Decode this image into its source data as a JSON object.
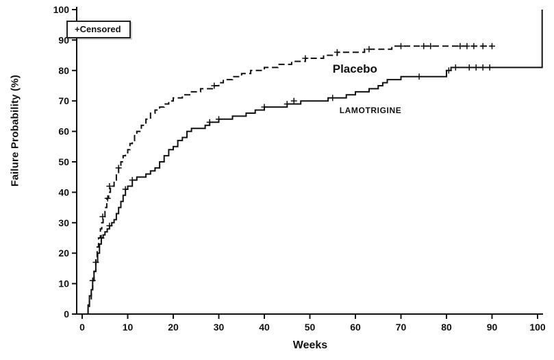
{
  "figure": {
    "background": "#ffffff",
    "axis_color": "#111111"
  },
  "chart_data": {
    "type": "line",
    "subtype": "kaplan-meier-step",
    "title": "",
    "xlabel": "Weeks",
    "ylabel": "Failure Probability (%)",
    "xlim": [
      0,
      101
    ],
    "ylim": [
      0,
      100
    ],
    "x_ticks": [
      0,
      10,
      20,
      30,
      40,
      50,
      60,
      70,
      80,
      90,
      100
    ],
    "y_ticks": [
      0,
      10,
      20,
      30,
      40,
      50,
      60,
      70,
      80,
      90,
      100
    ],
    "grid": false,
    "legend": {
      "label": "+Censored",
      "position": "top-left"
    },
    "series": [
      {
        "id": "placebo",
        "name": "Placebo",
        "line_style": "dashed",
        "label_week": 55,
        "label_prob": 80.5,
        "points": [
          [
            1,
            0
          ],
          [
            1.3,
            2
          ],
          [
            1.6,
            5
          ],
          [
            2,
            8
          ],
          [
            2.3,
            11
          ],
          [
            2.6,
            14
          ],
          [
            3,
            18
          ],
          [
            3.3,
            22
          ],
          [
            3.6,
            25
          ],
          [
            4,
            28
          ],
          [
            4.3,
            30
          ],
          [
            4.6,
            32
          ],
          [
            5,
            35
          ],
          [
            5.4,
            38
          ],
          [
            5.8,
            40
          ],
          [
            6.2,
            42
          ],
          [
            7,
            44
          ],
          [
            7.5,
            46
          ],
          [
            8,
            48
          ],
          [
            8.5,
            50
          ],
          [
            9,
            52
          ],
          [
            9.5,
            53
          ],
          [
            10,
            54
          ],
          [
            10.5,
            56
          ],
          [
            11,
            57
          ],
          [
            11.5,
            59
          ],
          [
            12,
            60
          ],
          [
            13,
            62
          ],
          [
            14,
            64
          ],
          [
            15,
            66
          ],
          [
            16,
            67
          ],
          [
            17,
            68
          ],
          [
            18,
            69
          ],
          [
            19,
            70
          ],
          [
            20,
            71
          ],
          [
            22,
            72
          ],
          [
            24,
            73
          ],
          [
            26,
            74
          ],
          [
            28,
            74
          ],
          [
            29,
            75
          ],
          [
            30,
            76
          ],
          [
            31,
            77
          ],
          [
            33,
            78
          ],
          [
            35,
            79
          ],
          [
            37,
            80
          ],
          [
            40,
            81
          ],
          [
            43,
            82
          ],
          [
            46,
            83
          ],
          [
            49,
            84
          ],
          [
            53,
            85
          ],
          [
            56,
            86
          ],
          [
            60,
            86
          ],
          [
            62,
            87
          ],
          [
            66,
            87
          ],
          [
            68,
            88
          ],
          [
            70,
            88
          ],
          [
            90,
            88
          ]
        ],
        "censored": [
          [
            4.5,
            32
          ],
          [
            5.6,
            38
          ],
          [
            6,
            42
          ],
          [
            8,
            48
          ],
          [
            29,
            75
          ],
          [
            49,
            84
          ],
          [
            56,
            86
          ],
          [
            63,
            87
          ],
          [
            70,
            88
          ],
          [
            75,
            88
          ],
          [
            76.5,
            88
          ],
          [
            83,
            88
          ],
          [
            84.5,
            88
          ],
          [
            86,
            88
          ],
          [
            88,
            88
          ],
          [
            90,
            88
          ]
        ]
      },
      {
        "id": "lamotrigine",
        "name": "LAMOTRIGINE",
        "line_style": "solid",
        "label_week": 56.5,
        "label_prob": 67,
        "points": [
          [
            1,
            0
          ],
          [
            1.3,
            3
          ],
          [
            1.6,
            6
          ],
          [
            2,
            8
          ],
          [
            2.3,
            11
          ],
          [
            2.6,
            14
          ],
          [
            3,
            17
          ],
          [
            3.4,
            20
          ],
          [
            3.8,
            23
          ],
          [
            4.2,
            25
          ],
          [
            4.6,
            26
          ],
          [
            5,
            27
          ],
          [
            5.5,
            28
          ],
          [
            6,
            29
          ],
          [
            6.5,
            30
          ],
          [
            7,
            31
          ],
          [
            7.5,
            33
          ],
          [
            8,
            35
          ],
          [
            8.5,
            37
          ],
          [
            9,
            39
          ],
          [
            9.5,
            41
          ],
          [
            10,
            42
          ],
          [
            11,
            44
          ],
          [
            12,
            45
          ],
          [
            14,
            46
          ],
          [
            15,
            47
          ],
          [
            16,
            48
          ],
          [
            17,
            50
          ],
          [
            18,
            52
          ],
          [
            19,
            54
          ],
          [
            20,
            55
          ],
          [
            21,
            57
          ],
          [
            22,
            58
          ],
          [
            23,
            60
          ],
          [
            24,
            61
          ],
          [
            26,
            61
          ],
          [
            27,
            62
          ],
          [
            28,
            63
          ],
          [
            30,
            64
          ],
          [
            33,
            65
          ],
          [
            36,
            66
          ],
          [
            38,
            67
          ],
          [
            40,
            68
          ],
          [
            44,
            68
          ],
          [
            45,
            69
          ],
          [
            48,
            70
          ],
          [
            52,
            70
          ],
          [
            54,
            71
          ],
          [
            58,
            72
          ],
          [
            60,
            73
          ],
          [
            63,
            74
          ],
          [
            65,
            75
          ],
          [
            66,
            76
          ],
          [
            67,
            77
          ],
          [
            70,
            78
          ],
          [
            79,
            78
          ],
          [
            80,
            80
          ],
          [
            81,
            81
          ],
          [
            101,
            81
          ],
          [
            101,
            100
          ]
        ],
        "censored": [
          [
            2.3,
            11
          ],
          [
            3,
            17
          ],
          [
            4.2,
            25
          ],
          [
            6,
            29
          ],
          [
            9.5,
            41
          ],
          [
            11,
            44
          ],
          [
            28,
            63
          ],
          [
            30,
            64
          ],
          [
            40,
            68
          ],
          [
            45,
            69
          ],
          [
            46.5,
            70
          ],
          [
            55,
            71
          ],
          [
            74,
            78
          ],
          [
            80.5,
            80
          ],
          [
            82,
            81
          ],
          [
            85,
            81
          ],
          [
            86.5,
            81
          ],
          [
            88,
            81
          ],
          [
            89.5,
            81
          ]
        ]
      }
    ]
  }
}
